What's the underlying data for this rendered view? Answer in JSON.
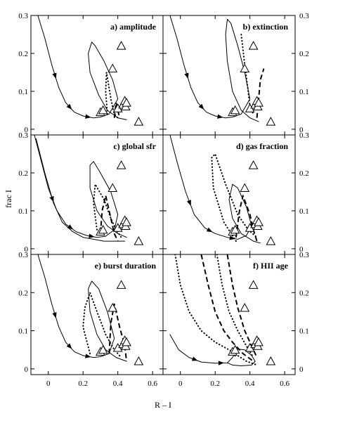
{
  "axes": {
    "xlabel": "R – I",
    "ylabel": "frac I"
  },
  "chart_data": {
    "type": "line",
    "xlim": [
      -0.1,
      0.66
    ],
    "ylim": [
      -0.015,
      0.3
    ],
    "x_ticks": [
      0,
      0.2,
      0.4,
      0.6
    ],
    "x_tick_labels": [
      "0",
      "0.2",
      "0.4",
      "0.6"
    ],
    "y_ticks": [
      0,
      0.1,
      0.2,
      0.3
    ],
    "y_tick_labels_left": [
      "0",
      "0.1",
      "0.2",
      "0.3"
    ],
    "y_tick_labels_right": [
      "0",
      "0.1",
      "0.2",
      "0.3"
    ],
    "observed_points": [
      [
        0.3,
        0.045
      ],
      [
        0.315,
        0.05
      ],
      [
        0.37,
        0.16
      ],
      [
        0.4,
        0.055
      ],
      [
        0.42,
        0.22
      ],
      [
        0.43,
        0.065
      ],
      [
        0.44,
        0.075
      ],
      [
        0.445,
        0.06
      ],
      [
        0.45,
        0.07
      ],
      [
        0.52,
        0.02
      ]
    ],
    "panels": [
      {
        "id": "a",
        "title": "a) amplitude",
        "series": [
          {
            "style": "solid",
            "points": [
              [
                -0.06,
                0.3
              ],
              [
                -0.02,
                0.24
              ],
              [
                0.02,
                0.17
              ],
              [
                0.06,
                0.11
              ],
              [
                0.1,
                0.07
              ],
              [
                0.15,
                0.045
              ],
              [
                0.2,
                0.035
              ],
              [
                0.26,
                0.03
              ],
              [
                0.3,
                0.032
              ],
              [
                0.35,
                0.04
              ],
              [
                0.4,
                0.08
              ],
              [
                0.37,
                0.13
              ],
              [
                0.32,
                0.18
              ],
              [
                0.27,
                0.22
              ],
              [
                0.25,
                0.23
              ],
              [
                0.23,
                0.2
              ],
              [
                0.24,
                0.15
              ],
              [
                0.29,
                0.09
              ],
              [
                0.34,
                0.05
              ],
              [
                0.4,
                0.03
              ],
              [
                0.45,
                0.025
              ]
            ]
          },
          {
            "style": "dotted",
            "points": [
              [
                0.34,
                0.04
              ],
              [
                0.33,
                0.1
              ],
              [
                0.335,
                0.15
              ],
              [
                0.36,
                0.08
              ],
              [
                0.38,
                0.04
              ],
              [
                0.4,
                0.03
              ]
            ]
          },
          {
            "style": "dashed",
            "points": [
              [
                0.38,
                0.03
              ],
              [
                0.39,
                0.07
              ],
              [
                0.4,
                0.05
              ],
              [
                0.41,
                0.03
              ]
            ]
          }
        ]
      },
      {
        "id": "b",
        "title": "b) extinction",
        "series": [
          {
            "style": "solid",
            "points": [
              [
                -0.06,
                0.3
              ],
              [
                -0.02,
                0.24
              ],
              [
                0.02,
                0.17
              ],
              [
                0.06,
                0.11
              ],
              [
                0.1,
                0.07
              ],
              [
                0.15,
                0.045
              ],
              [
                0.2,
                0.035
              ],
              [
                0.26,
                0.03
              ],
              [
                0.3,
                0.032
              ],
              [
                0.35,
                0.04
              ],
              [
                0.4,
                0.08
              ],
              [
                0.37,
                0.15
              ],
              [
                0.33,
                0.22
              ],
              [
                0.29,
                0.28
              ],
              [
                0.27,
                0.29
              ],
              [
                0.26,
                0.25
              ],
              [
                0.27,
                0.18
              ],
              [
                0.3,
                0.1
              ],
              [
                0.35,
                0.05
              ],
              [
                0.4,
                0.03
              ],
              [
                0.45,
                0.02
              ]
            ]
          },
          {
            "style": "dotted",
            "points": [
              [
                0.35,
                0.25
              ],
              [
                0.37,
                0.17
              ],
              [
                0.39,
                0.1
              ],
              [
                0.4,
                0.06
              ],
              [
                0.42,
                0.04
              ]
            ]
          },
          {
            "style": "dashed",
            "points": [
              [
                0.44,
                0.03
              ],
              [
                0.45,
                0.08
              ],
              [
                0.46,
                0.13
              ],
              [
                0.48,
                0.16
              ]
            ]
          }
        ]
      },
      {
        "id": "c",
        "title": "c) global sfr",
        "series": [
          {
            "style": "solid",
            "points": [
              [
                -0.08,
                0.3
              ],
              [
                -0.04,
                0.23
              ],
              [
                0,
                0.16
              ],
              [
                0.05,
                0.1
              ],
              [
                0.1,
                0.065
              ],
              [
                0.16,
                0.045
              ],
              [
                0.22,
                0.035
              ],
              [
                0.28,
                0.03
              ],
              [
                0.33,
                0.033
              ],
              [
                0.38,
                0.05
              ],
              [
                0.4,
                0.09
              ],
              [
                0.36,
                0.15
              ],
              [
                0.3,
                0.2
              ],
              [
                0.26,
                0.23
              ],
              [
                0.24,
                0.22
              ],
              [
                0.24,
                0.16
              ],
              [
                0.28,
                0.1
              ],
              [
                0.34,
                0.06
              ],
              [
                0.4,
                0.04
              ],
              [
                0.45,
                0.03
              ]
            ]
          },
          {
            "style": "solid",
            "points": [
              [
                -0.07,
                0.29
              ],
              [
                -0.02,
                0.2
              ],
              [
                0.03,
                0.12
              ],
              [
                0.08,
                0.07
              ],
              [
                0.14,
                0.045
              ],
              [
                0.2,
                0.03
              ],
              [
                0.26,
                0.025
              ],
              [
                0.32,
                0.02
              ],
              [
                0.38,
                0.02
              ],
              [
                0.44,
                0.02
              ]
            ]
          },
          {
            "style": "dotted",
            "points": [
              [
                0.28,
                0.05
              ],
              [
                0.26,
                0.12
              ],
              [
                0.27,
                0.17
              ],
              [
                0.32,
                0.13
              ],
              [
                0.36,
                0.08
              ],
              [
                0.39,
                0.05
              ],
              [
                0.42,
                0.03
              ]
            ]
          },
          {
            "style": "dashed",
            "points": [
              [
                0.3,
                0.04
              ],
              [
                0.31,
                0.1
              ],
              [
                0.33,
                0.14
              ],
              [
                0.36,
                0.08
              ],
              [
                0.38,
                0.04
              ],
              [
                0.4,
                0.02
              ]
            ]
          }
        ]
      },
      {
        "id": "d",
        "title": "d) gas fraction",
        "series": [
          {
            "style": "solid",
            "points": [
              [
                -0.06,
                0.3
              ],
              [
                -0.02,
                0.23
              ],
              [
                0.03,
                0.15
              ],
              [
                0.08,
                0.09
              ],
              [
                0.14,
                0.055
              ],
              [
                0.2,
                0.04
              ],
              [
                0.27,
                0.03
              ],
              [
                0.33,
                0.025
              ],
              [
                0.38,
                0.035
              ],
              [
                0.41,
                0.06
              ],
              [
                0.38,
                0.11
              ],
              [
                0.33,
                0.16
              ],
              [
                0.3,
                0.17
              ],
              [
                0.28,
                0.13
              ],
              [
                0.3,
                0.08
              ],
              [
                0.35,
                0.04
              ],
              [
                0.42,
                0.02
              ],
              [
                0.46,
                0.015
              ]
            ]
          },
          {
            "style": "dotted",
            "points": [
              [
                0.32,
                0.02
              ],
              [
                0.25,
                0.07
              ],
              [
                0.19,
                0.16
              ],
              [
                0.18,
                0.24
              ],
              [
                0.2,
                0.25
              ],
              [
                0.26,
                0.17
              ],
              [
                0.33,
                0.09
              ],
              [
                0.39,
                0.05
              ],
              [
                0.44,
                0.03
              ]
            ]
          },
          {
            "style": "dashed",
            "points": [
              [
                0.32,
                0.03
              ],
              [
                0.34,
                0.1
              ],
              [
                0.36,
                0.14
              ],
              [
                0.4,
                0.09
              ],
              [
                0.42,
                0.05
              ],
              [
                0.44,
                0.02
              ]
            ]
          }
        ]
      },
      {
        "id": "e",
        "title": "e) burst duration",
        "series": [
          {
            "style": "solid",
            "points": [
              [
                -0.06,
                0.3
              ],
              [
                -0.02,
                0.24
              ],
              [
                0.02,
                0.17
              ],
              [
                0.06,
                0.11
              ],
              [
                0.1,
                0.07
              ],
              [
                0.15,
                0.045
              ],
              [
                0.2,
                0.035
              ],
              [
                0.26,
                0.03
              ],
              [
                0.3,
                0.032
              ],
              [
                0.35,
                0.04
              ],
              [
                0.38,
                0.08
              ],
              [
                0.34,
                0.15
              ],
              [
                0.29,
                0.21
              ],
              [
                0.25,
                0.23
              ],
              [
                0.23,
                0.21
              ],
              [
                0.24,
                0.15
              ],
              [
                0.28,
                0.09
              ],
              [
                0.33,
                0.05
              ],
              [
                0.39,
                0.03
              ],
              [
                0.45,
                0.02
              ]
            ]
          },
          {
            "style": "dotted",
            "points": [
              [
                0.24,
                0.04
              ],
              [
                0.2,
                0.11
              ],
              [
                0.21,
                0.16
              ],
              [
                0.24,
                0.2
              ],
              [
                0.28,
                0.15
              ],
              [
                0.33,
                0.09
              ],
              [
                0.38,
                0.05
              ],
              [
                0.42,
                0.03
              ]
            ]
          },
          {
            "style": "dashed",
            "points": [
              [
                0.35,
                0.04
              ],
              [
                0.36,
                0.12
              ],
              [
                0.38,
                0.17
              ],
              [
                0.41,
                0.11
              ],
              [
                0.44,
                0.06
              ],
              [
                0.45,
                0.02
              ]
            ]
          }
        ]
      },
      {
        "id": "f",
        "title": "f) HII age",
        "series": [
          {
            "style": "solid",
            "points": [
              [
                -0.06,
                0.09
              ],
              [
                -0.01,
                0.05
              ],
              [
                0.05,
                0.03
              ],
              [
                0.12,
                0.018
              ],
              [
                0.2,
                0.015
              ],
              [
                0.27,
                0.016
              ],
              [
                0.3,
                0.03
              ],
              [
                0.33,
                0.052
              ],
              [
                0.37,
                0.05
              ],
              [
                0.41,
                0.035
              ],
              [
                0.43,
                0.02
              ],
              [
                0.41,
                0.01
              ],
              [
                0.35,
                0.008
              ],
              [
                0.3,
                0.01
              ],
              [
                0.27,
                0.016
              ]
            ]
          },
          {
            "style": "dotted",
            "points": [
              [
                -0.03,
                0.3
              ],
              [
                0,
                0.22
              ],
              [
                0.05,
                0.15
              ],
              [
                0.12,
                0.1
              ],
              [
                0.2,
                0.07
              ],
              [
                0.28,
                0.05
              ],
              [
                0.33,
                0.035
              ],
              [
                0.38,
                0.02
              ],
              [
                0.44,
                0.01
              ]
            ]
          },
          {
            "style": "dotted",
            "points": [
              [
                0.21,
                0.3
              ],
              [
                0.24,
                0.22
              ],
              [
                0.28,
                0.15
              ],
              [
                0.33,
                0.1
              ],
              [
                0.38,
                0.06
              ],
              [
                0.42,
                0.03
              ]
            ]
          },
          {
            "style": "dashed",
            "points": [
              [
                0.12,
                0.3
              ],
              [
                0.16,
                0.22
              ],
              [
                0.2,
                0.15
              ],
              [
                0.25,
                0.1
              ],
              [
                0.3,
                0.07
              ],
              [
                0.36,
                0.04
              ],
              [
                0.42,
                0.02
              ]
            ]
          },
          {
            "style": "dashed",
            "points": [
              [
                0.27,
                0.3
              ],
              [
                0.3,
                0.22
              ],
              [
                0.33,
                0.16
              ],
              [
                0.37,
                0.1
              ],
              [
                0.41,
                0.06
              ],
              [
                0.44,
                0.03
              ]
            ]
          }
        ]
      }
    ]
  }
}
